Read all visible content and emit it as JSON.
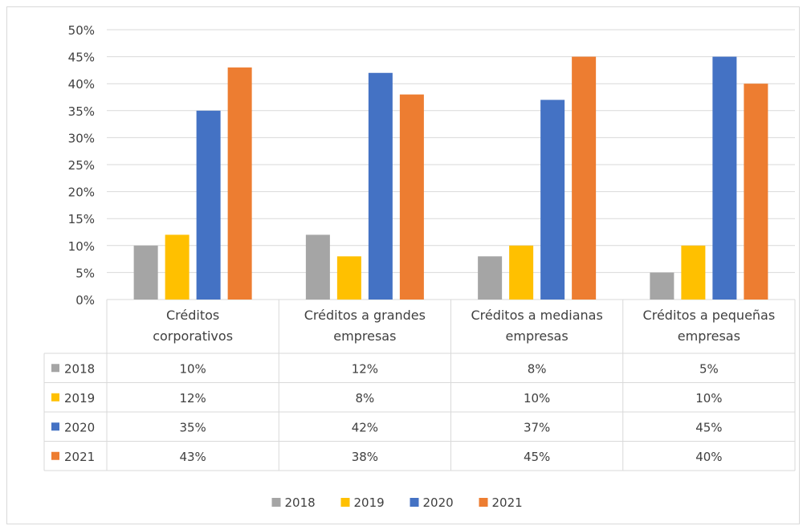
{
  "chart_data": {
    "type": "bar",
    "categories": [
      [
        "Créditos",
        "corporativos"
      ],
      [
        "Créditos a grandes",
        "empresas"
      ],
      [
        "Créditos a medianas",
        "empresas"
      ],
      [
        "Créditos a pequeñas",
        "empresas"
      ]
    ],
    "y_ticks": [
      "0%",
      "5%",
      "10%",
      "15%",
      "20%",
      "25%",
      "30%",
      "35%",
      "40%",
      "45%",
      "50%"
    ],
    "ylim": [
      0,
      50
    ],
    "grid": true,
    "legend_position": "bottom",
    "has_data_table": true,
    "series": [
      {
        "name": "2018",
        "color": "#a5a5a5",
        "values": [
          10,
          12,
          8,
          5
        ],
        "labels": [
          "10%",
          "12%",
          "8%",
          "5%"
        ]
      },
      {
        "name": "2019",
        "color": "#ffc000",
        "values": [
          12,
          8,
          10,
          10
        ],
        "labels": [
          "12%",
          "8%",
          "10%",
          "10%"
        ]
      },
      {
        "name": "2020",
        "color": "#4472c4",
        "values": [
          35,
          42,
          37,
          45
        ],
        "labels": [
          "35%",
          "42%",
          "37%",
          "45%"
        ]
      },
      {
        "name": "2021",
        "color": "#ed7d31",
        "values": [
          43,
          38,
          45,
          40
        ],
        "labels": [
          "43%",
          "38%",
          "45%",
          "40%"
        ]
      }
    ]
  }
}
